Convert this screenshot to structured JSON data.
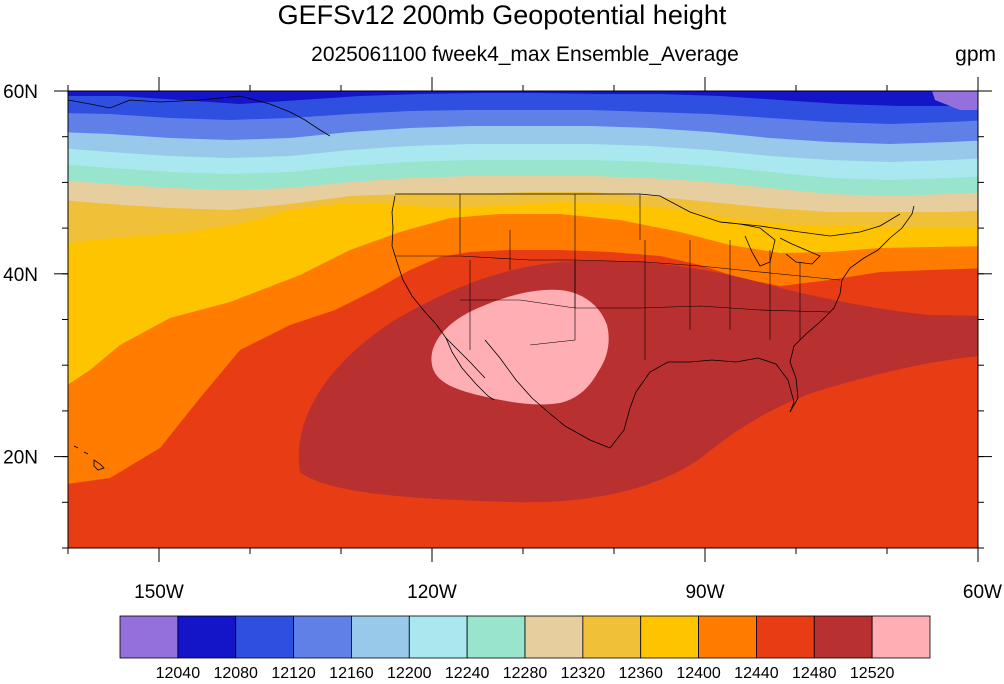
{
  "title": "GEFSv12 200mb Geopotential height",
  "subtitle": "2025061100 fweek4_max Ensemble_Average",
  "units": "gpm",
  "map": {
    "lon_range": [
      -160,
      -60
    ],
    "lat_range": [
      10,
      60
    ],
    "x_ticks": [
      {
        "lon": -150,
        "label": "150W"
      },
      {
        "lon": -120,
        "label": "120W"
      },
      {
        "lon": -90,
        "label": "90W"
      },
      {
        "lon": -60,
        "label": "60W"
      }
    ],
    "y_ticks": [
      {
        "lat": 60,
        "label": "60N"
      },
      {
        "lat": 40,
        "label": "40N"
      },
      {
        "lat": 20,
        "label": "20N"
      }
    ]
  },
  "colorbar": {
    "colors": [
      "#9370db",
      "#1414c8",
      "#2f4fe0",
      "#6080e8",
      "#98c8ea",
      "#a8e8ee",
      "#98e4cc",
      "#e6ce9e",
      "#f0c038",
      "#ffc400",
      "#ff7c00",
      "#e83c14",
      "#b83030",
      "#ffaeb4"
    ],
    "labels": [
      "12040",
      "12080",
      "12120",
      "12160",
      "12200",
      "12240",
      "12280",
      "12320",
      "12360",
      "12400",
      "12440",
      "12480",
      "12520"
    ]
  }
}
